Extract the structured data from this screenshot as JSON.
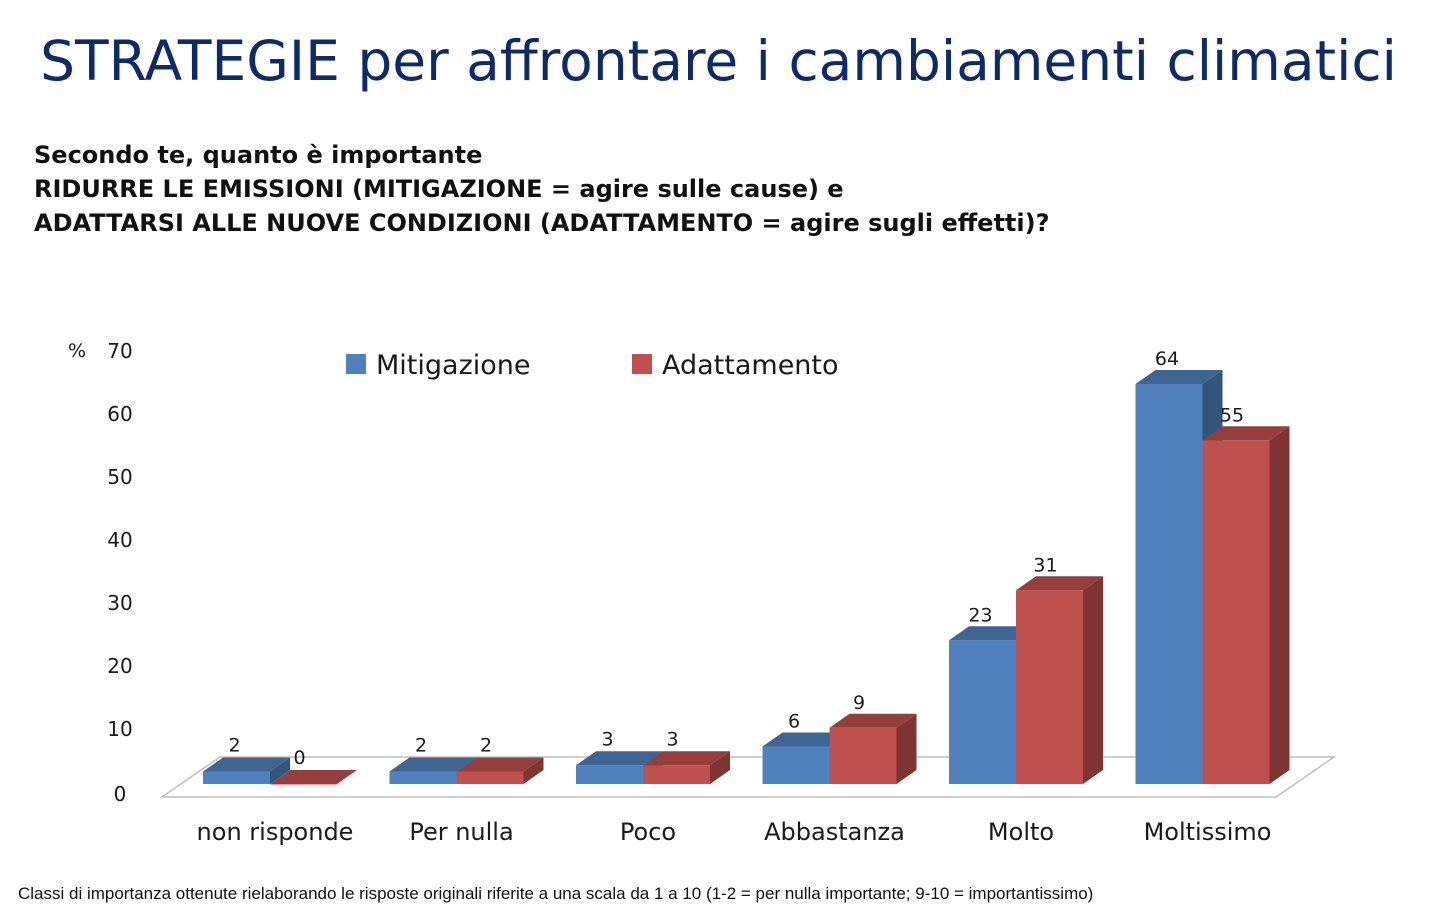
{
  "title": "STRATEGIE per affrontare i cambiamenti climatici",
  "question": [
    "Secondo te, quanto è importante",
    "RIDURRE LE EMISSIONI (MITIGAZIONE = agire sulle cause) e",
    "ADATTARSI ALLE NUOVE CONDIZIONI (ADATTAMENTO = agire sugli effetti)?"
  ],
  "footnote": "Classi di importanza ottenute rielaborando le risposte originali riferite a una scala da 1 a 10 (1-2 = per nulla importante;  9-10 = importantissimo)",
  "chart_data": {
    "type": "bar",
    "style": "3d-clustered",
    "ylabel": "%",
    "ylim": [
      0,
      70
    ],
    "yticks": [
      0,
      10,
      20,
      30,
      40,
      50,
      60,
      70
    ],
    "grid": false,
    "legend_position": "top",
    "categories": [
      "non risponde",
      "Per nulla",
      "Poco",
      "Abbastanza",
      "Molto",
      "Moltissimo"
    ],
    "series": [
      {
        "name": "Mitigazione",
        "color": "#4f81bd",
        "values": [
          2,
          2,
          3,
          6,
          23,
          64
        ]
      },
      {
        "name": "Adattamento",
        "color": "#c0504d",
        "values": [
          0,
          2,
          3,
          9,
          31,
          55
        ]
      }
    ]
  }
}
